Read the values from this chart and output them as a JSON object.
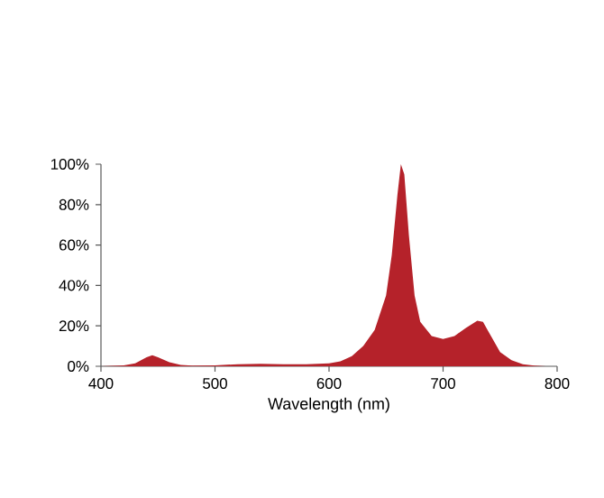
{
  "chart_data": {
    "type": "area",
    "xlabel": "Wavelength (nm)",
    "x": [
      400,
      420,
      430,
      440,
      445,
      450,
      460,
      470,
      480,
      500,
      520,
      540,
      560,
      580,
      600,
      610,
      620,
      630,
      640,
      650,
      655,
      660,
      663,
      666,
      670,
      675,
      680,
      690,
      700,
      710,
      720,
      730,
      735,
      740,
      750,
      760,
      770,
      780,
      790
    ],
    "values": [
      0,
      0.5,
      1.5,
      4.5,
      5.5,
      4.5,
      2,
      0.7,
      0.3,
      0.5,
      1,
      1.2,
      1,
      1,
      1.5,
      2.5,
      5,
      10,
      18,
      35,
      55,
      85,
      100,
      95,
      65,
      35,
      22,
      15,
      13.5,
      15,
      19,
      22.5,
      22,
      17,
      7,
      3,
      1,
      0.3,
      0
    ],
    "color": "#b5222a",
    "xlim": [
      400,
      800
    ],
    "ylim": [
      0,
      100
    ],
    "xticks": [
      400,
      500,
      600,
      700,
      800
    ],
    "yticks": [
      {
        "value": 0,
        "label": "0%"
      },
      {
        "value": 20,
        "label": "20%"
      },
      {
        "value": 40,
        "label": "40%"
      },
      {
        "value": 60,
        "label": "60%"
      },
      {
        "value": 80,
        "label": "80%"
      },
      {
        "value": 100,
        "label": "100%"
      }
    ]
  }
}
